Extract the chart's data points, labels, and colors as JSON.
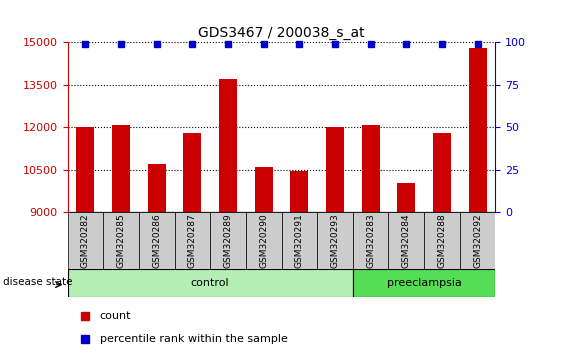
{
  "title": "GDS3467 / 200038_s_at",
  "samples": [
    "GSM320282",
    "GSM320285",
    "GSM320286",
    "GSM320287",
    "GSM320289",
    "GSM320290",
    "GSM320291",
    "GSM320293",
    "GSM320283",
    "GSM320284",
    "GSM320288",
    "GSM320292"
  ],
  "counts": [
    12000,
    12100,
    10700,
    11800,
    13700,
    10600,
    10450,
    12000,
    12100,
    10050,
    11800,
    14800
  ],
  "percentiles": [
    99,
    99,
    99,
    99,
    99,
    99,
    99,
    99,
    99,
    99,
    99,
    99
  ],
  "groups": [
    "control",
    "control",
    "control",
    "control",
    "control",
    "control",
    "control",
    "control",
    "preeclampsia",
    "preeclampsia",
    "preeclampsia",
    "preeclampsia"
  ],
  "control_color": "#b3efb3",
  "preeclampsia_color": "#55dd55",
  "bar_color": "#cc0000",
  "marker_color": "#0000cc",
  "ylim_left": [
    9000,
    15000
  ],
  "ylim_right": [
    0,
    100
  ],
  "yticks_left": [
    9000,
    10500,
    12000,
    13500,
    15000
  ],
  "yticks_right": [
    0,
    25,
    50,
    75,
    100
  ],
  "grid_color": "black",
  "background_color": "white",
  "tick_label_color_left": "#cc0000",
  "tick_label_color_right": "#0000cc",
  "legend_count_label": "count",
  "legend_pct_label": "percentile rank within the sample",
  "disease_state_label": "disease state",
  "control_label": "control",
  "preeclampsia_label": "preeclampsia",
  "n_control": 8,
  "n_total": 12,
  "bar_width": 0.5
}
